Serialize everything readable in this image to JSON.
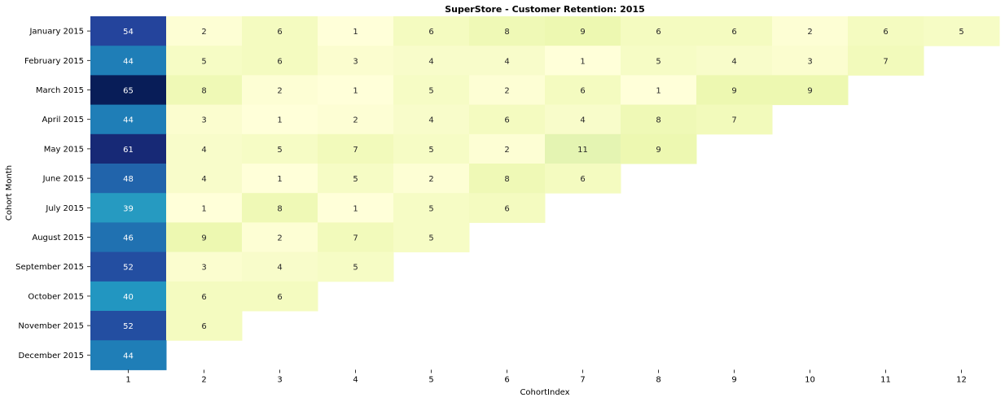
{
  "chart_data": {
    "type": "heatmap",
    "title": "SuperStore - Customer Retention: 2015",
    "xlabel": "CohortIndex",
    "ylabel": "Cohort Month",
    "x": [
      "1",
      "2",
      "3",
      "4",
      "5",
      "6",
      "7",
      "8",
      "9",
      "10",
      "11",
      "12"
    ],
    "y": [
      "January 2015",
      "February 2015",
      "March 2015",
      "April 2015",
      "May 2015",
      "June 2015",
      "July 2015",
      "August 2015",
      "September 2015",
      "October 2015",
      "November 2015",
      "December 2015"
    ],
    "values": [
      [
        54,
        2,
        6,
        1,
        6,
        8,
        9,
        6,
        6,
        2,
        6,
        5
      ],
      [
        44,
        5,
        6,
        3,
        4,
        4,
        1,
        5,
        4,
        3,
        7
      ],
      [
        65,
        8,
        2,
        1,
        5,
        2,
        6,
        1,
        9,
        9
      ],
      [
        44,
        3,
        1,
        2,
        4,
        6,
        4,
        8,
        7
      ],
      [
        61,
        4,
        5,
        7,
        5,
        2,
        11,
        9
      ],
      [
        48,
        4,
        1,
        5,
        2,
        8,
        6
      ],
      [
        39,
        1,
        8,
        1,
        5,
        6
      ],
      [
        46,
        9,
        2,
        7,
        5
      ],
      [
        52,
        3,
        4,
        5
      ],
      [
        40,
        6,
        6
      ],
      [
        52,
        6
      ],
      [
        44
      ]
    ],
    "colormap": "YlGnBu",
    "vmin": 1,
    "vmax": 65,
    "colorbar": false,
    "grid": false
  }
}
